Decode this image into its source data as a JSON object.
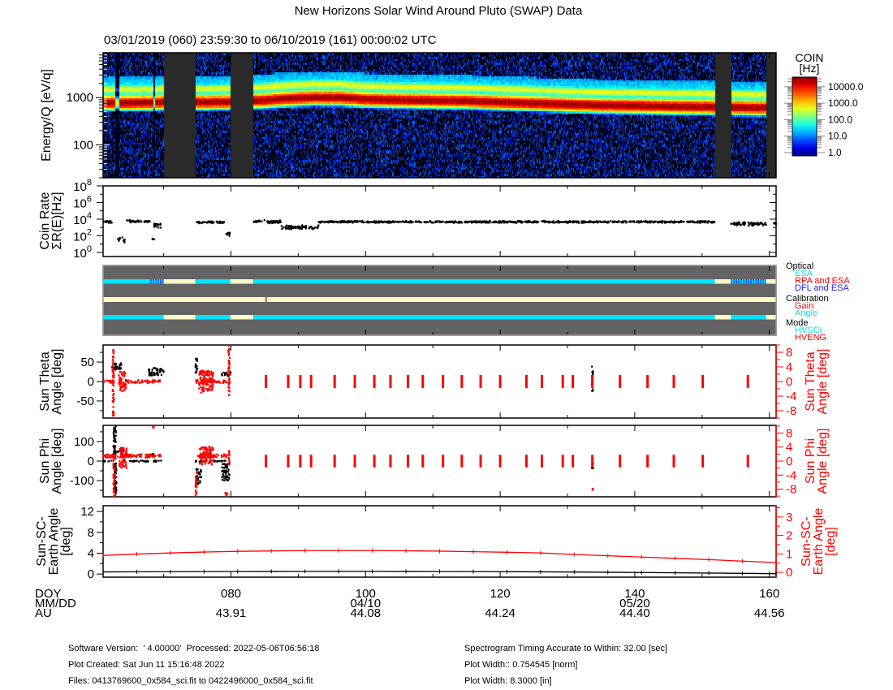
{
  "title": "New Horizons Solar Wind Around Pluto (SWAP) Data",
  "subtitle": "03/01/2019 (060) 23:59:30 to 06/10/2019 (161) 00:00:02 UTC",
  "x_axis": {
    "range_doy": [
      61,
      161
    ],
    "row_labels": {
      "doy": "DOY",
      "mmdd": "MM/DD",
      "au": "AU"
    },
    "ticks": [
      {
        "value": 80,
        "doy": "080",
        "mmdd": "",
        "au": "43.91"
      },
      {
        "value": 100,
        "doy": "100",
        "mmdd": "04/10",
        "au": "44.08"
      },
      {
        "value": 120,
        "doy": "120",
        "mmdd": "",
        "au": "44.24"
      },
      {
        "value": 140,
        "doy": "140",
        "mmdd": "05/20",
        "au": "44.40"
      },
      {
        "value": 160,
        "doy": "160",
        "mmdd": "",
        "au": "44.56"
      }
    ]
  },
  "colors": {
    "black_series": "#000000",
    "red_series": "#ff0000",
    "data_gap": "#2a2a2a",
    "status_background": "#646464",
    "status_none": "#fffac8",
    "esa": "#00e5ff",
    "dfl_and_esa": "#1e50ff",
    "rpa_and_esa": "#ff0000",
    "gain": "#e8603c",
    "angle": "#00e5ff",
    "hvsci": "#00e5ff",
    "hveng": "#ff0000"
  },
  "chart_data": [
    {
      "type": "heatmap",
      "ylabel": "Energy/Q [eV/q]",
      "yscale": "log",
      "ylim": [
        20,
        8900
      ],
      "yticks": [
        100,
        1000
      ],
      "ytick_labels": [
        "100",
        "1000"
      ],
      "colorbar": {
        "title": "COIN",
        "unit": "[Hz]",
        "scale": "log",
        "colormap": "jet",
        "ticks": [
          10000,
          1000,
          100,
          10,
          1
        ],
        "tick_labels": [
          "10000.0",
          "1000.0",
          "100.0",
          "10.0",
          "1.0"
        ]
      },
      "proton_peak": {
        "doy": [
          61,
          65,
          70,
          75,
          80,
          84,
          88,
          92,
          96,
          100,
          105,
          110,
          115,
          120,
          125,
          130,
          135,
          140,
          145,
          150,
          155,
          161
        ],
        "energy_eV": [
          780,
          780,
          800,
          800,
          820,
          860,
          950,
          1000,
          1000,
          920,
          890,
          870,
          850,
          800,
          760,
          720,
          690,
          670,
          650,
          640,
          620,
          600
        ]
      },
      "proton_peak_rate_hz": 15000,
      "alpha_peak_energy_factor": 1.9,
      "data_gaps_doy": [
        [
          70.0,
          74.7
        ],
        [
          79.9,
          83.3
        ],
        [
          151.9,
          154.3
        ],
        [
          159.5,
          161.0
        ]
      ],
      "low_count_intervals_doy": [
        [
          62.8,
          63.3
        ],
        [
          68.4,
          68.6
        ]
      ]
    },
    {
      "type": "scatter",
      "ylabel_lines": [
        "Coin Rate",
        "ΣR(E)[Hz]"
      ],
      "yscale": "log",
      "ylim": [
        0.32,
        100000000
      ],
      "ytick_labels": [
        {
          "base": "10",
          "exp": "8"
        },
        {
          "base": "10",
          "exp": "6"
        },
        {
          "base": "10",
          "exp": "4"
        },
        {
          "base": "10",
          "exp": "2"
        },
        {
          "base": "10",
          "exp": "0"
        }
      ],
      "yticks": [
        100000000,
        1000000,
        10000,
        100,
        1
      ],
      "segments": [
        {
          "doy": [
            61.0,
            62.3
          ],
          "rate_hz": [
            3000,
            7000
          ]
        },
        {
          "doy": [
            63.2,
            64.2
          ],
          "rate_hz": [
            8,
            150
          ]
        },
        {
          "doy": [
            64.5,
            68.0
          ],
          "rate_hz": [
            4000,
            8000
          ]
        },
        {
          "doy": [
            68.3,
            69.6
          ],
          "rate_hz": [
            800,
            4000
          ]
        },
        {
          "doy": [
            68.3,
            68.6
          ],
          "rate_hz": [
            25,
            60
          ]
        },
        {
          "doy": [
            74.7,
            79.0
          ],
          "rate_hz": [
            3000,
            6000
          ]
        },
        {
          "doy": [
            79.1,
            79.9
          ],
          "rate_hz": [
            60,
            300
          ]
        },
        {
          "doy": [
            83.3,
            87.5
          ],
          "rate_hz": [
            3000,
            8000
          ]
        },
        {
          "doy": [
            87.5,
            93.0
          ],
          "rate_hz": [
            600,
            2000
          ]
        },
        {
          "doy": [
            93.0,
            151.9
          ],
          "rate_hz": [
            3500,
            6500
          ]
        },
        {
          "doy": [
            154.3,
            159.5
          ],
          "rate_hz": [
            1500,
            5000
          ]
        },
        {
          "doy": [
            160.6,
            161.0
          ],
          "rate_hz": [
            2500,
            4000
          ]
        }
      ]
    },
    {
      "type": "scatter",
      "ylabel_lines": [
        "Sun Theta",
        "Angle [deg]"
      ],
      "right_ylabel_lines": [
        "Sun Theta",
        "Angle [deg]"
      ],
      "ylim": [
        -94,
        94
      ],
      "yticks": [
        50,
        0,
        -50
      ],
      "ytick_labels": [
        "50",
        "0",
        "-50"
      ],
      "right_ylim": [
        -10,
        10
      ],
      "right_yticks": [
        8,
        4,
        0,
        -4,
        -8
      ],
      "right_ytick_labels": [
        "8",
        "4",
        "0",
        "-4",
        "-8"
      ],
      "black_clusters": [
        {
          "doy": [
            62.3,
            63.8
          ],
          "range": [
            30,
            48
          ]
        },
        {
          "doy": [
            67.7,
            70.0
          ],
          "range": [
            15,
            35
          ]
        },
        {
          "doy": [
            74.7,
            75.0
          ],
          "range": [
            20,
            60
          ]
        },
        {
          "doy": [
            78.6,
            80.0
          ],
          "range": [
            15,
            25
          ]
        },
        {
          "doy": [
            133.6,
            133.8
          ],
          "range": [
            -25,
            40
          ]
        }
      ],
      "red_clusters": [
        {
          "doy": [
            61.0,
            62.4
          ],
          "range": [
            -0.4,
            0.4
          ]
        },
        {
          "doy": [
            62.4,
            62.6
          ],
          "range": [
            -10,
            9.3
          ]
        },
        {
          "doy": [
            63.3,
            64.4
          ],
          "range": [
            -2.7,
            2.7
          ]
        },
        {
          "doy": [
            64.4,
            69.6
          ],
          "range": [
            -0.4,
            0.4
          ]
        },
        {
          "doy": [
            74.7,
            79.6
          ],
          "range": [
            -0.4,
            0.4
          ]
        },
        {
          "doy": [
            75.2,
            77.4
          ],
          "range": [
            -3,
            3
          ]
        },
        {
          "doy": [
            79.6,
            79.8
          ],
          "range": [
            -3.8,
            10
          ]
        }
      ],
      "red_bars_doy": [
        85.2,
        88.5,
        90.3,
        91.9,
        95.4,
        98.4,
        101.3,
        103.7,
        106.3,
        108.5,
        111.5,
        114.3,
        117.1,
        120.0,
        123.9,
        126.2,
        129.3,
        130.8,
        133.7,
        137.8,
        141.9,
        145.8,
        150.1,
        156.8
      ],
      "red_bars_range": [
        -1.8,
        1.8
      ]
    },
    {
      "type": "scatter",
      "ylabel_lines": [
        "Sun Phi",
        "Angle [deg]"
      ],
      "right_ylabel_lines": [
        "Sun Phi",
        "Angle [deg]"
      ],
      "ylim": [
        -183,
        183
      ],
      "yticks": [
        100,
        0,
        -100
      ],
      "ytick_labels": [
        "100",
        "0",
        "-100"
      ],
      "right_ylim": [
        -10.2,
        10.2
      ],
      "right_yticks": [
        8,
        4,
        0,
        -4,
        -8
      ],
      "right_ytick_labels": [
        "8",
        "4",
        "0",
        "-4",
        "-8"
      ],
      "black_clusters": [
        {
          "doy": [
            61.0,
            62.3
          ],
          "range": [
            -3,
            3
          ]
        },
        {
          "doy": [
            62.5,
            62.9
          ],
          "range": [
            0,
            180
          ]
        },
        {
          "doy": [
            62.6,
            63.0
          ],
          "range": [
            -180,
            0
          ]
        },
        {
          "doy": [
            63.0,
            64.0
          ],
          "range": [
            45,
            55
          ]
        },
        {
          "doy": [
            64.0,
            69.6
          ],
          "range": [
            -3,
            3
          ]
        },
        {
          "doy": [
            68.3,
            68.5
          ],
          "range": [
            25,
            40
          ]
        },
        {
          "doy": [
            74.7,
            79.4
          ],
          "range": [
            -3,
            3
          ]
        },
        {
          "doy": [
            74.8,
            75.6
          ],
          "range": [
            -118,
            -40
          ]
        },
        {
          "doy": [
            78.6,
            79.8
          ],
          "range": [
            -100,
            -10
          ]
        },
        {
          "doy": [
            133.6,
            133.8
          ],
          "range": [
            -40,
            0
          ]
        }
      ],
      "red_clusters": [
        {
          "doy": [
            61.0,
            69.6
          ],
          "range": [
            1.0,
            2.0
          ]
        },
        {
          "doy": [
            63.4,
            64.5
          ],
          "range": [
            -2,
            4
          ]
        },
        {
          "doy": [
            62.5,
            62.8
          ],
          "range": [
            -10,
            1
          ]
        },
        {
          "doy": [
            68.4,
            68.5
          ],
          "range": [
            9.5,
            10
          ]
        },
        {
          "doy": [
            74.7,
            79.5
          ],
          "range": [
            1.0,
            2.0
          ]
        },
        {
          "doy": [
            75.3,
            77.4
          ],
          "range": [
            -1,
            4.2
          ]
        },
        {
          "doy": [
            74.7,
            74.9
          ],
          "range": [
            -10,
            -3
          ]
        },
        {
          "doy": [
            79.0,
            79.5
          ],
          "range": [
            -10,
            -9
          ]
        },
        {
          "doy": [
            79.6,
            79.8
          ],
          "range": [
            -1,
            3
          ]
        },
        {
          "doy": [
            133.7,
            133.8
          ],
          "range": [
            -8.2,
            -7.8
          ]
        }
      ],
      "red_bars_doy": [
        85.2,
        88.5,
        90.3,
        91.9,
        95.4,
        98.4,
        101.3,
        103.7,
        106.3,
        108.5,
        111.5,
        114.3,
        117.1,
        120.0,
        123.9,
        126.2,
        129.3,
        130.8,
        133.7,
        137.8,
        141.9,
        145.8,
        150.1,
        156.8
      ],
      "red_bars_range": [
        -1.8,
        1.8
      ]
    },
    {
      "type": "line",
      "ylabel_lines": [
        "Sun-SC-",
        "Earth Angle",
        "[deg]"
      ],
      "right_ylabel_lines": [
        "Sun-SC-",
        "Earth Angle",
        "[deg]"
      ],
      "ylim": [
        -0.6,
        13.1
      ],
      "yticks": [
        12,
        8,
        4,
        0
      ],
      "ytick_labels": [
        "12",
        "8",
        "4",
        "0"
      ],
      "right_ylim": [
        -0.26,
        3.61
      ],
      "right_yticks": [
        3,
        2,
        1,
        0
      ],
      "right_ytick_labels": [
        "3",
        "2",
        "1",
        "0"
      ],
      "x": [
        61,
        66,
        71,
        76,
        81,
        86,
        91,
        96,
        101,
        106,
        111,
        116,
        121,
        126,
        131,
        136,
        141,
        146,
        151,
        156,
        161
      ],
      "series": [
        {
          "color": "#000000",
          "axis": "left",
          "values": [
            0.4,
            0.43,
            0.45,
            0.47,
            0.49,
            0.5,
            0.51,
            0.51,
            0.51,
            0.5,
            0.49,
            0.47,
            0.45,
            0.42,
            0.38,
            0.34,
            0.29,
            0.24,
            0.19,
            0.13,
            0.07
          ]
        },
        {
          "color": "#ff0000",
          "axis": "right",
          "values": [
            0.92,
            0.99,
            1.05,
            1.1,
            1.14,
            1.16,
            1.18,
            1.18,
            1.18,
            1.17,
            1.15,
            1.12,
            1.09,
            1.05,
            0.97,
            0.9,
            0.83,
            0.76,
            0.69,
            0.61,
            0.53
          ]
        }
      ]
    }
  ],
  "status_panel": {
    "legend": [
      {
        "label": "Optical",
        "color": "#000000",
        "indent": false
      },
      {
        "label": "ESA",
        "color": "#00e5ff",
        "indent": true
      },
      {
        "label": "RPA and ESA",
        "color": "#ff0000",
        "indent": true
      },
      {
        "label": "DFL and ESA",
        "color": "#1e1eff",
        "indent": true
      },
      {
        "label": "Calibration",
        "color": "#000000",
        "indent": false
      },
      {
        "label": "Gain",
        "color": "#ff0000",
        "indent": true
      },
      {
        "label": "Angle",
        "color": "#00e5ff",
        "indent": true
      },
      {
        "label": "Mode",
        "color": "#000000",
        "indent": false
      },
      {
        "label": "HVSCI",
        "color": "#00e5ff",
        "indent": true
      },
      {
        "label": "HVENG",
        "color": "#ff0000",
        "indent": true
      }
    ],
    "rows": [
      {
        "name": "optical",
        "segments": [
          {
            "doy": [
              61.0,
              68.0
            ],
            "state": "ESA"
          },
          {
            "doy": [
              68.0,
              70.0
            ],
            "state": "DFL and ESA"
          },
          {
            "doy": [
              70.0,
              74.7
            ],
            "state": "none"
          },
          {
            "doy": [
              74.7,
              79.9
            ],
            "state": "ESA"
          },
          {
            "doy": [
              79.9,
              83.3
            ],
            "state": "none"
          },
          {
            "doy": [
              83.3,
              151.9
            ],
            "state": "ESA"
          },
          {
            "doy": [
              151.9,
              154.3
            ],
            "state": "none"
          },
          {
            "doy": [
              154.3,
              159.5
            ],
            "state": "DFL and ESA"
          },
          {
            "doy": [
              159.5,
              161.0
            ],
            "state": "none"
          }
        ]
      },
      {
        "name": "calibration",
        "segments": [
          {
            "doy": [
              61.0,
              85.1
            ],
            "state": "none"
          },
          {
            "doy": [
              85.1,
              85.35
            ],
            "state": "Gain"
          },
          {
            "doy": [
              85.35,
              161.0
            ],
            "state": "none"
          }
        ]
      },
      {
        "name": "mode",
        "segments": [
          {
            "doy": [
              61.0,
              70.0
            ],
            "state": "HVSCI"
          },
          {
            "doy": [
              70.0,
              74.7
            ],
            "state": "none"
          },
          {
            "doy": [
              74.7,
              79.9
            ],
            "state": "HVSCI"
          },
          {
            "doy": [
              79.9,
              83.3
            ],
            "state": "none"
          },
          {
            "doy": [
              83.3,
              151.9
            ],
            "state": "HVSCI"
          },
          {
            "doy": [
              151.9,
              154.3
            ],
            "state": "none"
          },
          {
            "doy": [
              154.3,
              159.5
            ],
            "state": "HVSCI"
          },
          {
            "doy": [
              159.5,
              161.0
            ],
            "state": "none"
          }
        ]
      }
    ]
  },
  "footer": {
    "software_version": "Software Version:  ' 4.00000'  Processed: 2022-05-06T06:56:18",
    "plot_created": "Plot Created: Sat Jun 11 15:16:48 2022",
    "files": "Files: 0413769600_0x584_sci.fit to 0422496000_0x584_sci.fit",
    "timing": "Spectrogram Timing Accurate to Within: 32.00 [sec]",
    "plot_width_norm": "Plot Width:: 0.754545 [norm]",
    "plot_width_in": "Plot Width: 8.3000 [in]"
  }
}
